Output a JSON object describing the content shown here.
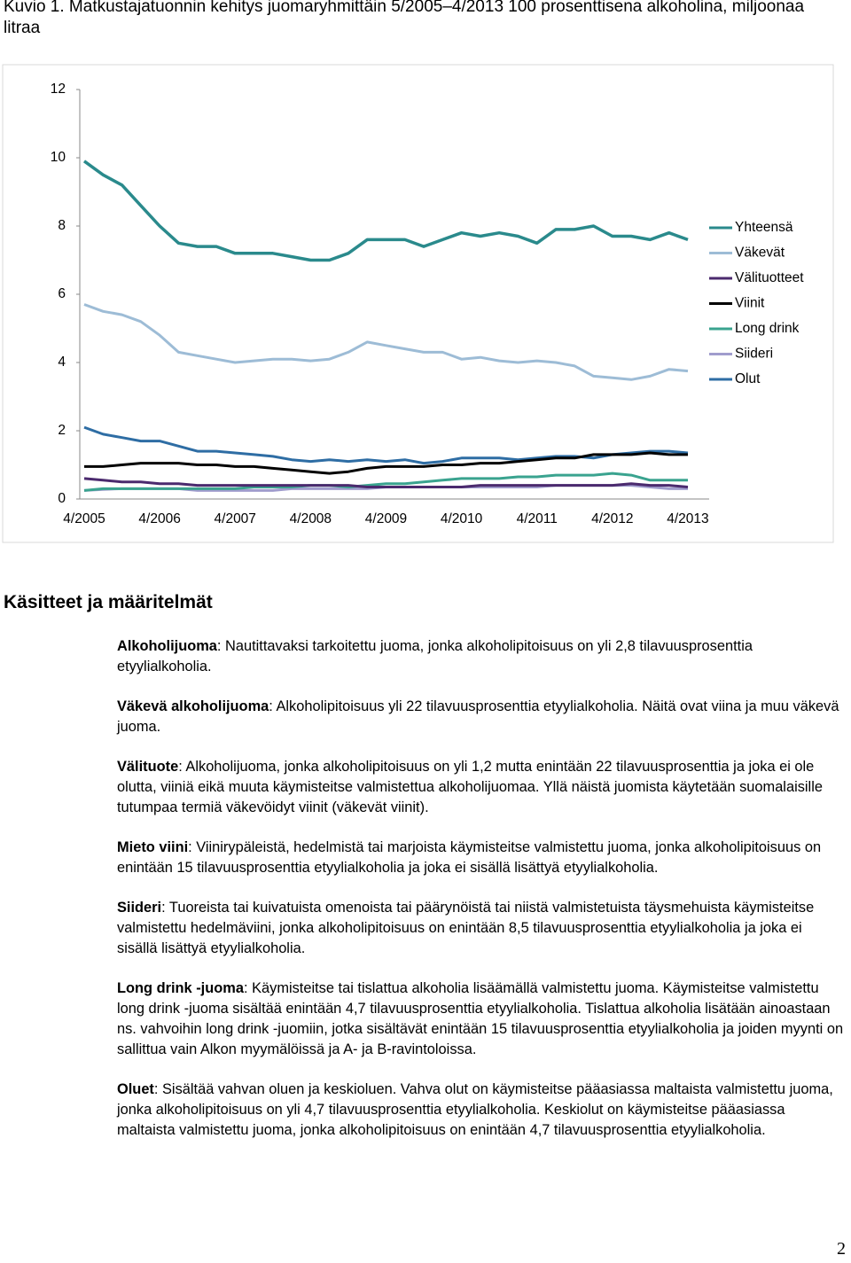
{
  "chart_data": {
    "type": "line",
    "title": "Kuvio 1. Matkustajatuonnin kehitys juomaryhmittäin 5/2005–4/2013 100 prosenttisena alkoholina, miljoonaa litraa",
    "categories": [
      "4/2005",
      null,
      null,
      null,
      "4/2006",
      null,
      null,
      null,
      "4/2007",
      null,
      null,
      null,
      "4/2008",
      null,
      null,
      null,
      "4/2009",
      null,
      null,
      null,
      "4/2010",
      null,
      null,
      null,
      "4/2011",
      null,
      null,
      null,
      "4/2012",
      null,
      null,
      null,
      "4/2013"
    ],
    "ylim": [
      0,
      12
    ],
    "yticks": [
      0,
      2,
      4,
      6,
      8,
      10,
      12
    ],
    "grid": false,
    "legend": "right",
    "series": [
      {
        "name": "Yhteensä",
        "color": "#2a8a8c",
        "values": [
          9.9,
          9.5,
          9.2,
          8.6,
          8.0,
          7.5,
          7.4,
          7.4,
          7.2,
          7.2,
          7.2,
          7.1,
          7.0,
          7.0,
          7.2,
          7.6,
          7.6,
          7.6,
          7.4,
          7.6,
          7.8,
          7.7,
          7.8,
          7.7,
          7.5,
          7.9,
          7.9,
          8.0,
          7.7,
          7.7,
          7.6,
          7.8,
          7.6
        ]
      },
      {
        "name": "Väkevät",
        "color": "#9dbcd6",
        "values": [
          5.7,
          5.5,
          5.4,
          5.2,
          4.8,
          4.3,
          4.2,
          4.1,
          4.0,
          4.05,
          4.1,
          4.1,
          4.05,
          4.1,
          4.3,
          4.6,
          4.5,
          4.4,
          4.3,
          4.3,
          4.1,
          4.15,
          4.05,
          4.0,
          4.05,
          4.0,
          3.9,
          3.6,
          3.55,
          3.5,
          3.6,
          3.8,
          3.75
        ]
      },
      {
        "name": "Välituotteet",
        "color": "#4b2a6e",
        "values": [
          0.6,
          0.55,
          0.5,
          0.5,
          0.45,
          0.45,
          0.4,
          0.4,
          0.4,
          0.4,
          0.4,
          0.4,
          0.4,
          0.4,
          0.4,
          0.35,
          0.35,
          0.35,
          0.35,
          0.35,
          0.35,
          0.4,
          0.4,
          0.4,
          0.4,
          0.4,
          0.4,
          0.4,
          0.4,
          0.45,
          0.4,
          0.4,
          0.35
        ]
      },
      {
        "name": "Viinit",
        "color": "#000000",
        "values": [
          0.95,
          0.95,
          1.0,
          1.05,
          1.05,
          1.05,
          1.0,
          1.0,
          0.95,
          0.95,
          0.9,
          0.85,
          0.8,
          0.75,
          0.8,
          0.9,
          0.95,
          0.95,
          0.95,
          1.0,
          1.0,
          1.05,
          1.05,
          1.1,
          1.15,
          1.2,
          1.2,
          1.3,
          1.3,
          1.3,
          1.35,
          1.3,
          1.3
        ]
      },
      {
        "name": "Long drink",
        "color": "#3aa38f",
        "values": [
          0.25,
          0.3,
          0.3,
          0.3,
          0.3,
          0.3,
          0.3,
          0.3,
          0.3,
          0.35,
          0.35,
          0.35,
          0.4,
          0.4,
          0.35,
          0.4,
          0.45,
          0.45,
          0.5,
          0.55,
          0.6,
          0.6,
          0.6,
          0.65,
          0.65,
          0.7,
          0.7,
          0.7,
          0.75,
          0.7,
          0.55,
          0.55,
          0.55
        ]
      },
      {
        "name": "Siideri",
        "color": "#a09ccd",
        "values": [
          0.25,
          0.28,
          0.3,
          0.3,
          0.3,
          0.3,
          0.25,
          0.25,
          0.25,
          0.25,
          0.25,
          0.3,
          0.3,
          0.3,
          0.3,
          0.3,
          0.35,
          0.35,
          0.35,
          0.35,
          0.35,
          0.35,
          0.35,
          0.35,
          0.35,
          0.4,
          0.4,
          0.4,
          0.4,
          0.4,
          0.35,
          0.3,
          0.3
        ]
      },
      {
        "name": "Olut",
        "color": "#2e6da4",
        "values": [
          2.1,
          1.9,
          1.8,
          1.7,
          1.7,
          1.55,
          1.4,
          1.4,
          1.35,
          1.3,
          1.25,
          1.15,
          1.1,
          1.15,
          1.1,
          1.15,
          1.1,
          1.15,
          1.05,
          1.1,
          1.2,
          1.2,
          1.2,
          1.15,
          1.2,
          1.25,
          1.25,
          1.2,
          1.3,
          1.35,
          1.4,
          1.4,
          1.35
        ]
      }
    ]
  },
  "definitions_heading": "Käsitteet ja määritelmät",
  "definitions": [
    {
      "term": "Alkoholijuoma",
      "text": ": Nautittavaksi tarkoitettu juoma, jonka alkoholipitoisuus on yli 2,8 tilavuusprosenttia etyylialkoholia."
    },
    {
      "term": "Väkevä alkoholijuoma",
      "text": ": Alkoholipitoisuus yli 22 tilavuusprosenttia etyylialkoholia. Näitä ovat viina ja muu väkevä juoma."
    },
    {
      "term": "Välituote",
      "text": ": Alkoholijuoma, jonka alkoholipitoisuus on yli 1,2 mutta enintään 22 tilavuusprosenttia ja joka ei ole olutta, viiniä eikä muuta käymisteitse valmistettua alkoholijuomaa. Yllä näistä juomista käytetään suomalaisille tutumpaa termiä väkevöidyt viinit (väkevät viinit)."
    },
    {
      "term": "Mieto viini",
      "text": ": Viinirypäleistä, hedelmistä tai marjoista käymisteitse valmistettu juoma, jonka alkoholipitoisuus on enintään 15 tilavuusprosenttia etyylialkoholia ja joka ei sisällä lisättyä etyylialkoholia."
    },
    {
      "term": "Siideri",
      "text": ": Tuoreista tai kuivatuista omenoista tai päärynöistä tai niistä valmistetuista täysmehuista käymisteitse valmistettu hedelmäviini, jonka alkoholipitoisuus on enintään 8,5 tilavuusprosenttia etyylialkoholia ja joka ei sisällä lisättyä etyylialkoholia."
    },
    {
      "term": "Long drink -juoma",
      "text": ": Käymisteitse tai tislattua alkoholia lisäämällä valmistettu juoma. Käymisteitse valmistettu long drink -juoma sisältää enintään 4,7 tilavuusprosenttia etyylialkoholia. Tislattua alkoholia lisätään ainoastaan ns. vahvoihin long drink -juomiin, jotka sisältävät enintään 15 tilavuusprosenttia etyylialkoholia ja joiden myynti on sallittua vain Alkon myymälöissä ja A- ja B-ravintoloissa."
    },
    {
      "term": "Oluet",
      "text": ": Sisältää vahvan oluen ja keskioluen. Vahva olut on käymisteitse pääasiassa maltaista valmistettu juoma, jonka alkoholipitoisuus on yli 4,7 tilavuusprosenttia etyylialkoholia. Keskiolut on käymisteitse pääasiassa maltaista valmistettu juoma, jonka alkoholipitoisuus on enintään 4,7 tilavuusprosenttia etyylialkoholia."
    }
  ],
  "page_number": "2"
}
